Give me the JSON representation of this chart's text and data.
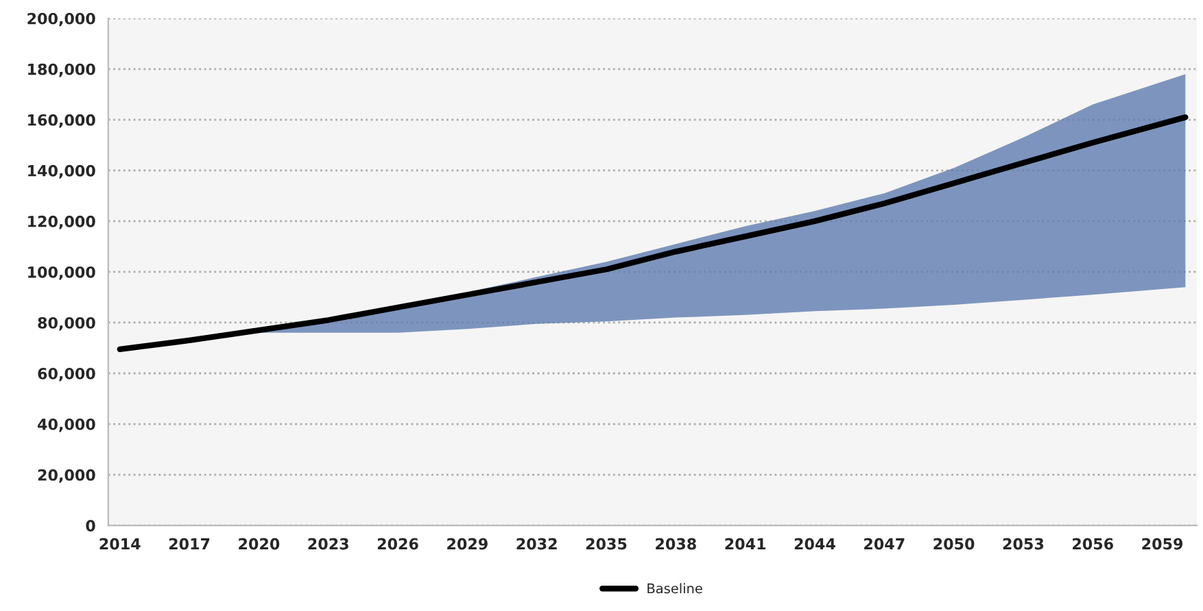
{
  "chart_data": {
    "type": "line",
    "x": [
      2014,
      2017,
      2020,
      2023,
      2026,
      2029,
      2032,
      2035,
      2038,
      2041,
      2044,
      2047,
      2050,
      2053,
      2056,
      2060
    ],
    "series": [
      {
        "name": "Baseline",
        "color": "#000000",
        "values": [
          69500,
          73000,
          77000,
          81000,
          86000,
          91000,
          96000,
          101000,
          108000,
          114000,
          120000,
          127000,
          135000,
          143000,
          151000,
          161000
        ],
        "lower": [
          69500,
          73000,
          76000,
          76000,
          76000,
          77500,
          79500,
          80500,
          82000,
          83000,
          84500,
          85500,
          87000,
          89000,
          91000,
          94000
        ],
        "upper": [
          69500,
          73000,
          77000,
          81000,
          86000,
          92000,
          98000,
          104000,
          111000,
          118000,
          124000,
          131000,
          141000,
          153000,
          166000,
          178000
        ]
      }
    ],
    "xlim": [
      2013.5,
      2060.5
    ],
    "xticks": [
      2014,
      2017,
      2020,
      2023,
      2026,
      2029,
      2032,
      2035,
      2038,
      2041,
      2044,
      2047,
      2050,
      2053,
      2056,
      2059
    ],
    "ylim": [
      0,
      200000
    ],
    "yticks": [
      {
        "value": 0,
        "label": "0"
      },
      {
        "value": 20000,
        "label": "20,000"
      },
      {
        "value": 40000,
        "label": "40,000"
      },
      {
        "value": 60000,
        "label": "60,000"
      },
      {
        "value": 80000,
        "label": "80,000"
      },
      {
        "value": 100000,
        "label": "100,000"
      },
      {
        "value": 120000,
        "label": "120,000"
      },
      {
        "value": 140000,
        "label": "140,000"
      },
      {
        "value": 160000,
        "label": "160,000"
      },
      {
        "value": 180000,
        "label": "180,000"
      },
      {
        "value": 200000,
        "label": "200,000"
      }
    ],
    "grid": "y",
    "legend": "bottom",
    "line_style": "solid",
    "marker": "none"
  }
}
